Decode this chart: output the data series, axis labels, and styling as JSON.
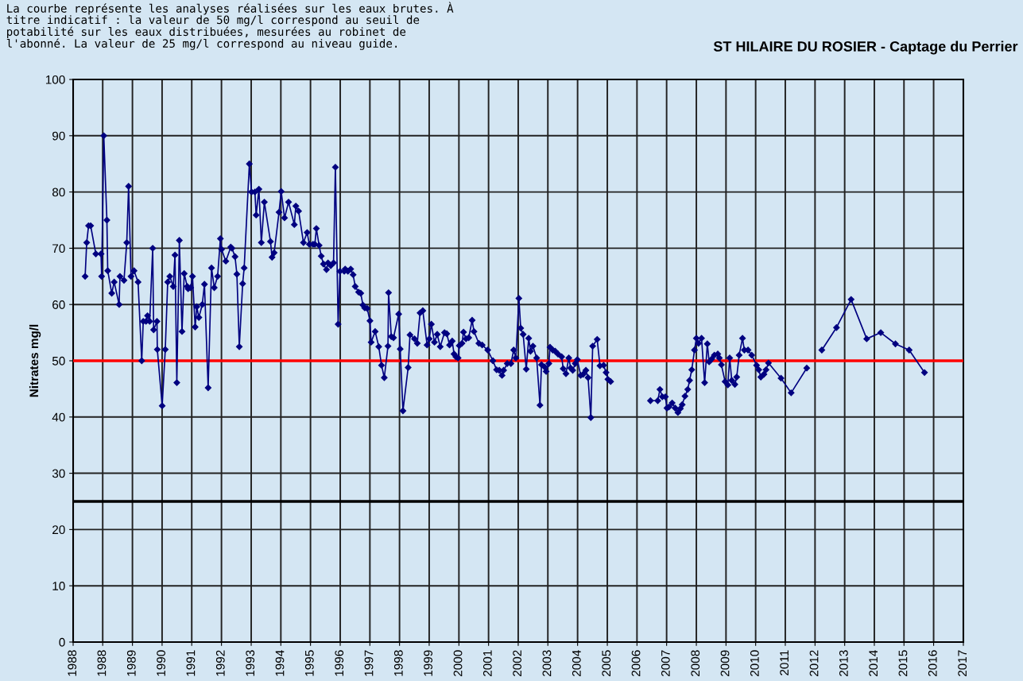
{
  "chart_data": {
    "type": "line",
    "title": "ST HILAIRE DU ROSIER - Captage du Perrier",
    "ylabel": "Nitrates mg/l",
    "annotations": [
      "La courbe représente les analyses réalisées sur les eaux brutes. À\ntitre indicatif : la valeur de 50 mg/l correspond au seuil de\npotabilité sur les eaux distribuées, mesurées au robinet de\nl'abonné. La valeur de 25 mg/l correspond au niveau guide."
    ],
    "xlim": [
      "1988-01-01",
      "2017-02-06"
    ],
    "xticks": [
      {
        "value": "1988-01-01",
        "label": "1988"
      },
      {
        "value": "1988-12-19",
        "label": "1988"
      },
      {
        "value": "1989-12-09",
        "label": "1989"
      },
      {
        "value": "1990-11-28",
        "label": "1990"
      },
      {
        "value": "1991-11-17",
        "label": "1991"
      },
      {
        "value": "1992-11-06",
        "label": "1992"
      },
      {
        "value": "1993-10-27",
        "label": "1993"
      },
      {
        "value": "1994-10-16",
        "label": "1994"
      },
      {
        "value": "1995-10-05",
        "label": "1995"
      },
      {
        "value": "1996-09-24",
        "label": "1996"
      },
      {
        "value": "1997-09-13",
        "label": "1997"
      },
      {
        "value": "1998-09-02",
        "label": "1998"
      },
      {
        "value": "1999-08-22",
        "label": "1999"
      },
      {
        "value": "2000-08-11",
        "label": "2000"
      },
      {
        "value": "2001-07-31",
        "label": "2001"
      },
      {
        "value": "2002-07-20",
        "label": "2002"
      },
      {
        "value": "2003-07-09",
        "label": "2003"
      },
      {
        "value": "2004-06-28",
        "label": "2004"
      },
      {
        "value": "2005-06-18",
        "label": "2005"
      },
      {
        "value": "2006-06-07",
        "label": "2006"
      },
      {
        "value": "2007-05-27",
        "label": "2007"
      },
      {
        "value": "2008-05-16",
        "label": "2008"
      },
      {
        "value": "2009-05-05",
        "label": "2009"
      },
      {
        "value": "2010-04-24",
        "label": "2010"
      },
      {
        "value": "2011-04-13",
        "label": "2011"
      },
      {
        "value": "2012-04-02",
        "label": "2012"
      },
      {
        "value": "2013-03-22",
        "label": "2013"
      },
      {
        "value": "2014-03-11",
        "label": "2014"
      },
      {
        "value": "2015-02-28",
        "label": "2015"
      },
      {
        "value": "2016-02-17",
        "label": "2016"
      },
      {
        "value": "2017-02-06",
        "label": "2017"
      }
    ],
    "ylim": [
      0,
      100
    ],
    "yticks": [
      0,
      10,
      20,
      30,
      40,
      50,
      60,
      70,
      80,
      90,
      100
    ],
    "grid": true,
    "marker": "diamond",
    "line_style": "solid",
    "ref_lines": [
      {
        "axis": "y",
        "value": 50,
        "color": "#ff0000"
      },
      {
        "axis": "y",
        "value": 25,
        "color": "#000000"
      }
    ],
    "series": [
      {
        "color": "#000080",
        "x": [
          "1988-05-23",
          "1988-06-11",
          "1988-07-03",
          "1988-07-28",
          "1988-09-28",
          "1988-11-29",
          "1988-12-06",
          "1989-01-01",
          "1989-02-07",
          "1989-02-17",
          "1989-04-06",
          "1989-05-05",
          "1989-07-03",
          "1989-07-13",
          "1989-08-30",
          "1989-10-02",
          "1989-10-24",
          "1989-11-22",
          "1989-12-28",
          "1990-02-14",
          "1990-03-30",
          "1990-04-17",
          "1990-05-20",
          "1990-06-07",
          "1990-07-03",
          "1990-08-08",
          "1990-08-19",
          "1990-09-28",
          "1990-10-02",
          "1990-11-29",
          "1991-01-05",
          "1991-02-03",
          "1991-02-28",
          "1991-04-10",
          "1991-05-01",
          "1991-05-23",
          "1991-06-22",
          "1991-07-24",
          "1991-08-19",
          "1991-09-24",
          "1991-10-05",
          "1991-11-04",
          "1991-11-26",
          "1991-12-28",
          "1992-01-16",
          "1992-02-10",
          "1992-03-22",
          "1992-04-17",
          "1992-05-31",
          "1992-07-10",
          "1992-08-12",
          "1992-09-21",
          "1992-10-24",
          "1992-11-07",
          "1992-12-28",
          "1993-02-25",
          "1993-03-11",
          "1993-04-17",
          "1993-05-09",
          "1993-06-07",
          "1993-07-17",
          "1993-08-04",
          "1993-10-05",
          "1993-10-31",
          "1993-12-10",
          "1993-12-25",
          "1994-01-27",
          "1994-02-25",
          "1994-04-02",
          "1994-06-14",
          "1994-07-03",
          "1994-07-28",
          "1994-09-24",
          "1994-10-20",
          "1994-11-29",
          "1995-01-16",
          "1995-03-26",
          "1995-04-13",
          "1995-05-16",
          "1995-07-13",
          "1995-08-26",
          "1995-09-21",
          "1995-11-04",
          "1995-11-26",
          "1995-12-14",
          "1996-01-16",
          "1996-02-10",
          "1996-03-08",
          "1996-04-13",
          "1996-05-01",
          "1996-06-03",
          "1996-07-06",
          "1996-07-28",
          "1996-08-30",
          "1996-09-21",
          "1996-11-11",
          "1996-11-22",
          "1996-12-25",
          "1997-01-27",
          "1997-02-25",
          "1997-03-22",
          "1997-05-01",
          "1997-05-27",
          "1997-06-22",
          "1997-07-13",
          "1997-08-12",
          "1997-09-14",
          "1997-09-28",
          "1997-11-15",
          "1997-12-28",
          "1998-01-30",
          "1998-03-04",
          "1998-04-17",
          "1998-04-24",
          "1998-05-27",
          "1998-06-22",
          "1998-08-23",
          "1998-09-10",
          "1998-10-13",
          "1998-12-14",
          "1999-01-05",
          "1999-02-28",
          "1999-04-02",
          "1999-05-05",
          "1999-06-07",
          "1999-07-28",
          "1999-08-23",
          "1999-09-17",
          "1999-10-24",
          "1999-11-26",
          "2000-01-01",
          "2000-02-21",
          "2000-03-19",
          "2000-04-21",
          "2000-05-23",
          "2000-06-14",
          "2000-07-06",
          "2000-08-01",
          "2000-08-15",
          "2000-09-17",
          "2000-10-05",
          "2000-11-04",
          "2000-12-06",
          "2001-01-16",
          "2001-02-07",
          "2001-04-06",
          "2001-05-16",
          "2001-07-21",
          "2001-09-21",
          "2001-11-04",
          "2001-12-06",
          "2002-01-08",
          "2002-01-27",
          "2002-03-11",
          "2002-04-24",
          "2002-05-27",
          "2002-06-22",
          "2002-07-28",
          "2002-08-19",
          "2002-09-17",
          "2002-10-24",
          "2002-11-22",
          "2002-12-14",
          "2003-01-12",
          "2003-02-25",
          "2003-04-06",
          "2003-04-24",
          "2003-05-31",
          "2003-06-18",
          "2003-07-21",
          "2003-08-04",
          "2003-09-06",
          "2003-10-05",
          "2003-11-07",
          "2003-12-21",
          "2004-01-08",
          "2004-02-10",
          "2004-03-15",
          "2004-04-06",
          "2004-05-01",
          "2004-05-31",
          "2004-06-25",
          "2004-08-04",
          "2004-09-03",
          "2004-10-05",
          "2004-10-31",
          "2004-12-03",
          "2004-12-25",
          "2005-02-17",
          "2005-03-22",
          "2005-05-05",
          "2005-06-03",
          "2005-06-25",
          "2005-07-28",
          "2006-03-15",
          "2006-11-15",
          "2007-02-10",
          "2007-03-08",
          "2007-04-06",
          "2007-05-12",
          "2007-05-31",
          "2007-06-25",
          "2007-08-01",
          "2007-09-06",
          "2007-10-09",
          "2007-11-07",
          "2007-11-29",
          "2008-01-01",
          "2008-02-03",
          "2008-02-25",
          "2008-03-22",
          "2008-04-24",
          "2008-05-16",
          "2008-06-11",
          "2008-07-17",
          "2008-08-23",
          "2008-09-24",
          "2008-10-16",
          "2008-11-15",
          "2008-12-17",
          "2009-01-27",
          "2009-02-14",
          "2009-03-11",
          "2009-04-24",
          "2009-05-27",
          "2009-06-18",
          "2009-07-13",
          "2009-08-19",
          "2009-09-10",
          "2009-10-09",
          "2009-11-18",
          "2009-12-10",
          "2010-01-23",
          "2010-03-08",
          "2010-05-05",
          "2010-05-31",
          "2010-06-25",
          "2010-08-01",
          "2010-08-26",
          "2010-09-24",
          "2011-02-21",
          "2011-06-22",
          "2011-12-25",
          "2012-03-15",
          "2012-06-22",
          "2012-12-14",
          "2013-06-07",
          "2013-12-10",
          "2014-05-27",
          "2014-11-18",
          "2015-05-01",
          "2015-10-31"
        ],
        "values": [
          65,
          71,
          74,
          74,
          69,
          69,
          65,
          90,
          75,
          66,
          62,
          64,
          60,
          65,
          64.3,
          71,
          81,
          65,
          66,
          64,
          50,
          57,
          57,
          58,
          57,
          70,
          55.5,
          57,
          52,
          42,
          52,
          64,
          65,
          63.2,
          68.8,
          46.1,
          71.4,
          55.2,
          65.5,
          63.2,
          62.8,
          63,
          65,
          56,
          59.6,
          57.7,
          60,
          63.6,
          45.2,
          66.5,
          63,
          65,
          71.7,
          69.8,
          67.7,
          70.2,
          70,
          68.5,
          65.4,
          52.5,
          63.7,
          66.5,
          85,
          80,
          80,
          75.9,
          80.5,
          71,
          78.2,
          71.2,
          68.4,
          69.2,
          76.4,
          80.1,
          75.4,
          78.2,
          74.2,
          77.5,
          76.6,
          71,
          72.8,
          70.7,
          70.7,
          70.7,
          73.5,
          70.5,
          68.6,
          67.2,
          66.2,
          67.4,
          66.9,
          67.4,
          84.4,
          56.5,
          65.9,
          65.9,
          66.3,
          65.9,
          66.3,
          65.3,
          63.2,
          62.2,
          62,
          59.9,
          59.4,
          59.3,
          57.1,
          53.3,
          55.2,
          52.5,
          49.2,
          47,
          52.6,
          62.1,
          54.3,
          54.1,
          58.3,
          52.1,
          41.1,
          48.8,
          54.6,
          53.9,
          53.1,
          58.5,
          58.9,
          52.8,
          53.9,
          56.5,
          53.3,
          54.7,
          52.5,
          55,
          54.8,
          52.8,
          53.5,
          51.2,
          50.7,
          50.5,
          52.7,
          53.1,
          55.1,
          53.9,
          54.1,
          57.2,
          55.2,
          53.1,
          52.8,
          51.9,
          50,
          48.4,
          48.3,
          47.4,
          48.3,
          49.5,
          49.5,
          51.9,
          50.5,
          61.1,
          55.8,
          54.7,
          48.5,
          54,
          51.7,
          52.6,
          50.5,
          42.1,
          49.3,
          48.9,
          48.1,
          49.5,
          52.4,
          51.9,
          51.7,
          51.2,
          50.7,
          48.6,
          47.7,
          50.5,
          48.7,
          48.3,
          49.5,
          50.2,
          47.4,
          47.6,
          48.3,
          47,
          39.9,
          52.6,
          53.8,
          49.1,
          49.2,
          47.9,
          46.7,
          46.3,
          null,
          42.9,
          42.9,
          44.9,
          43.6,
          43.6,
          41.6,
          41.8,
          42.5,
          41.6,
          40.8,
          41.5,
          42.2,
          43.7,
          44.9,
          46.5,
          48.4,
          51.9,
          54,
          53.1,
          54,
          46.1,
          53,
          49.8,
          50.3,
          51,
          51.2,
          50.5,
          49.3,
          46.3,
          45.7,
          50.5,
          46.5,
          45.8,
          47.1,
          51,
          54,
          51.9,
          51.9,
          51,
          49.2,
          48.4,
          47.1,
          47.6,
          48.4,
          49.6,
          46.9,
          44.3,
          48.7,
          null,
          51.9,
          55.9,
          60.9,
          53.9,
          55,
          53,
          51.9,
          47.9
        ]
      }
    ]
  }
}
